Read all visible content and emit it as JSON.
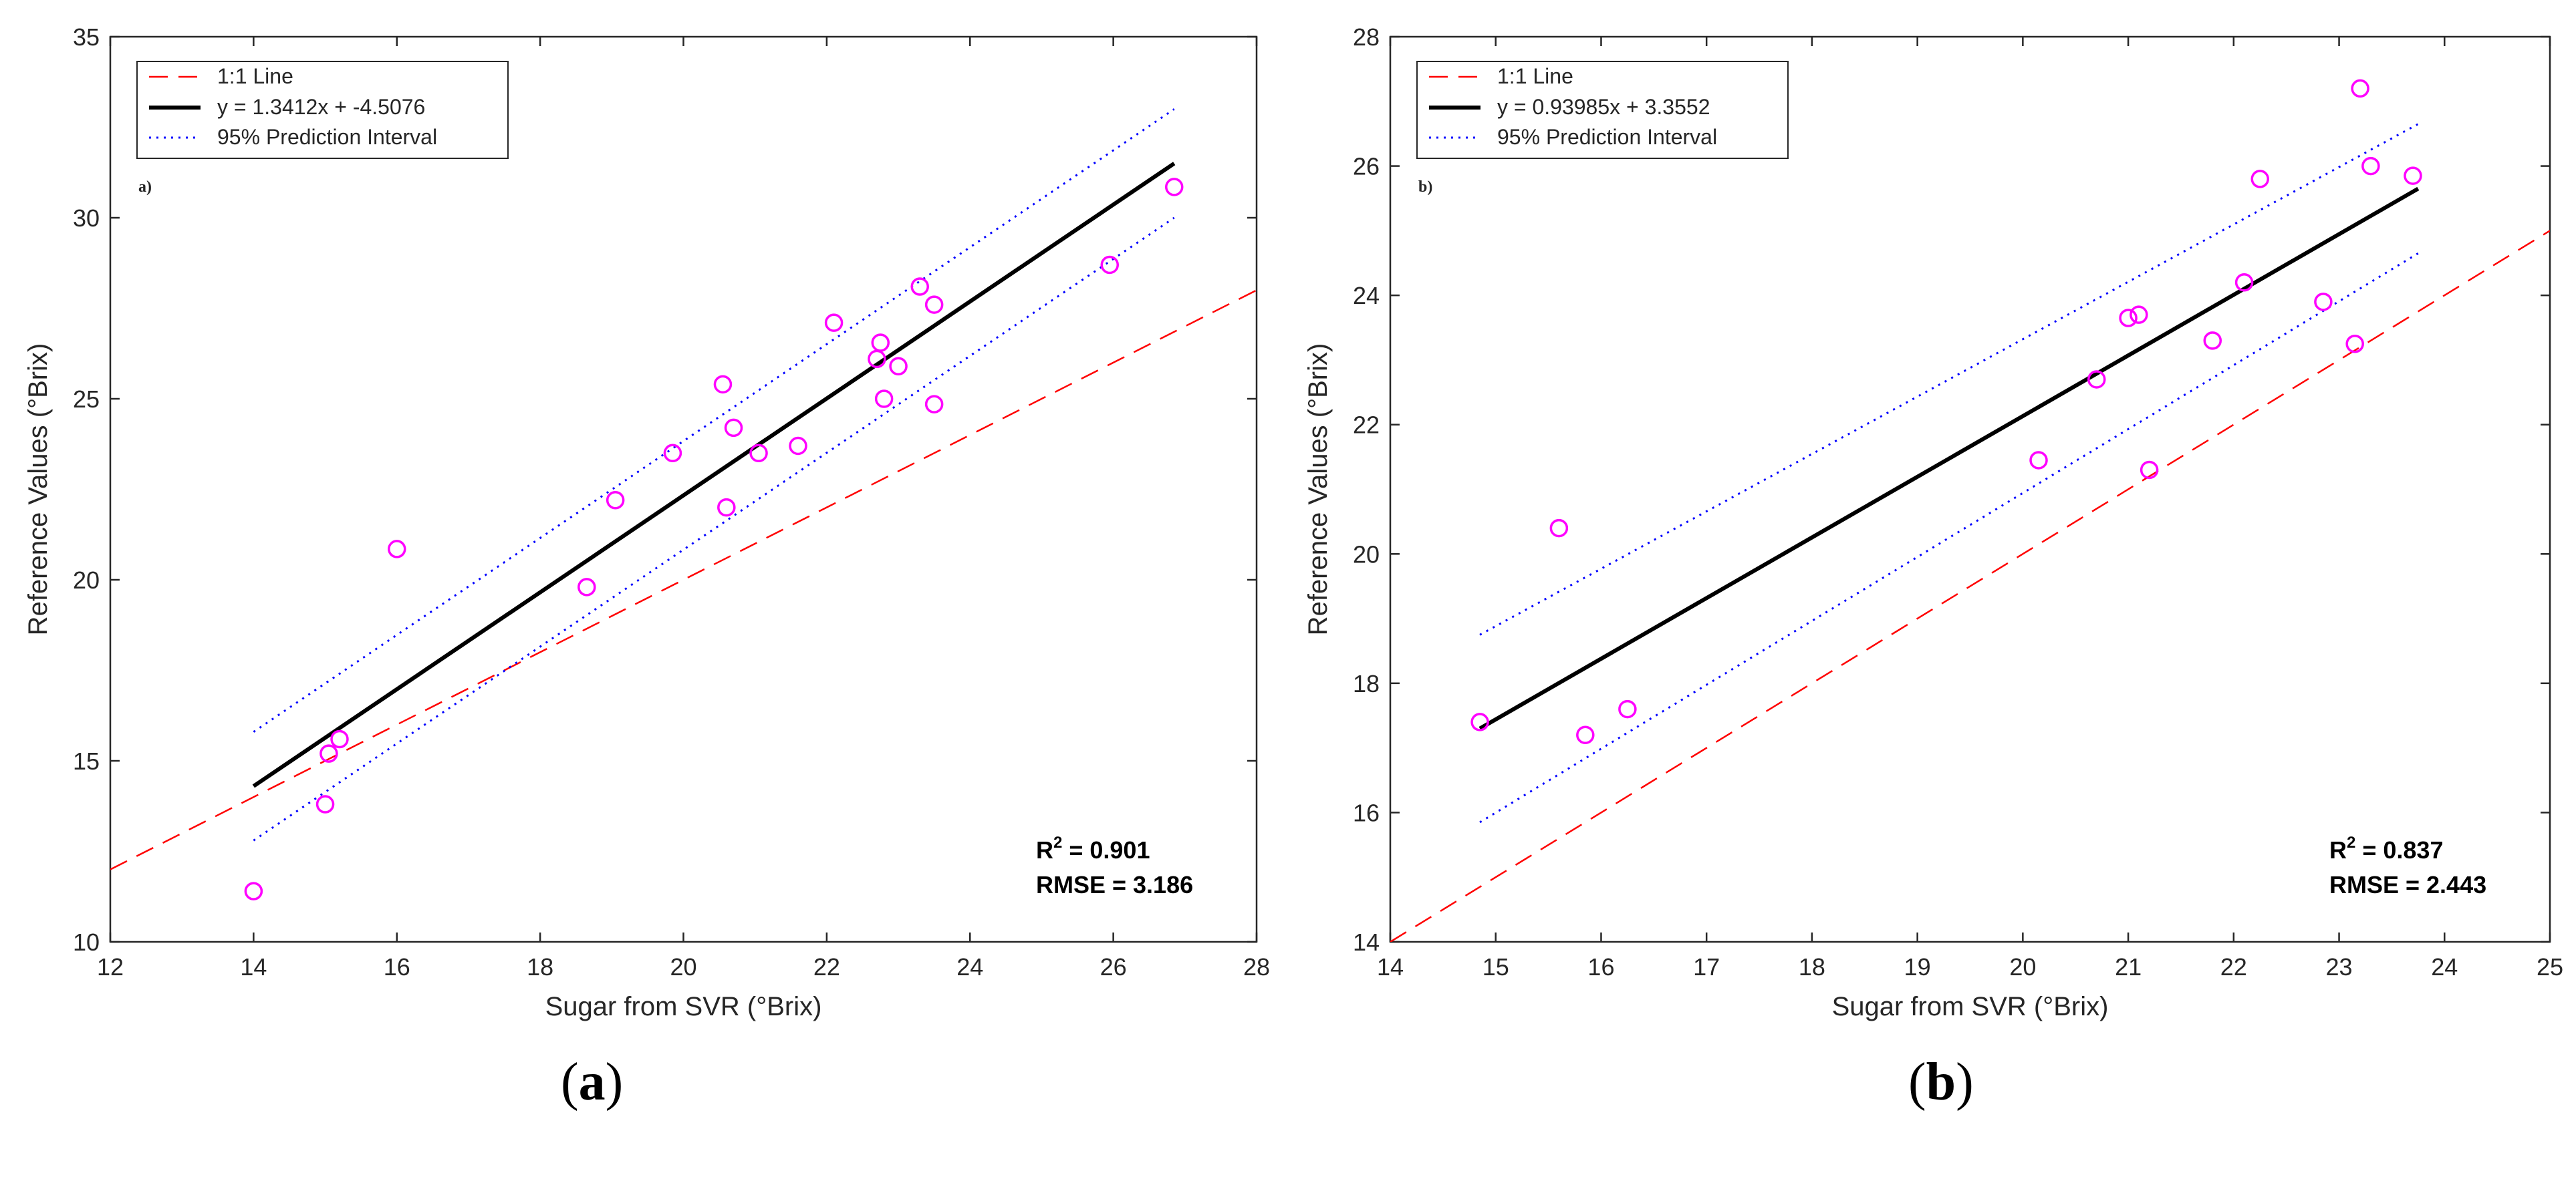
{
  "chart_data": [
    {
      "type": "scatter",
      "panel_tag": "a)",
      "caption_letter": "a",
      "xlabel": "Sugar from SVR (°Brix)",
      "ylabel": "Reference Values (°Brix)",
      "xlim": [
        12,
        28
      ],
      "ylim": [
        10,
        35
      ],
      "xticks": [
        12,
        14,
        16,
        18,
        20,
        22,
        24,
        26,
        28
      ],
      "yticks": [
        10,
        15,
        20,
        25,
        30,
        35
      ],
      "legend": [
        "1:1 Line",
        "y = 1.3412x + -4.5076",
        "95% Prediction Interval"
      ],
      "legend_position": "top-left",
      "stats": {
        "r2_label": "R",
        "r2_sup": "2",
        "r2_value": " = 0.901",
        "rmse": "RMSE  = 3.186"
      },
      "one_to_one": {
        "x": [
          12,
          28
        ],
        "y": [
          12,
          28
        ]
      },
      "fit_line": {
        "x": [
          14.0,
          26.85
        ],
        "y": [
          14.3,
          31.5
        ]
      },
      "pi_upper": {
        "x": [
          14.0,
          26.85
        ],
        "y": [
          15.8,
          33.0
        ]
      },
      "pi_lower": {
        "x": [
          14.0,
          26.85
        ],
        "y": [
          12.8,
          30.0
        ]
      },
      "points": [
        [
          14.0,
          11.4
        ],
        [
          15.0,
          13.8
        ],
        [
          15.05,
          15.2
        ],
        [
          15.2,
          15.6
        ],
        [
          16.0,
          20.85
        ],
        [
          18.65,
          19.8
        ],
        [
          19.05,
          22.2
        ],
        [
          19.85,
          23.5
        ],
        [
          20.55,
          25.4
        ],
        [
          20.6,
          22.0
        ],
        [
          20.7,
          24.2
        ],
        [
          21.05,
          23.5
        ],
        [
          21.6,
          23.7
        ],
        [
          22.1,
          27.1
        ],
        [
          22.7,
          26.1
        ],
        [
          22.75,
          26.55
        ],
        [
          22.8,
          25.0
        ],
        [
          23.0,
          25.9
        ],
        [
          23.3,
          28.1
        ],
        [
          23.5,
          24.85
        ],
        [
          23.5,
          27.6
        ],
        [
          25.95,
          28.7
        ],
        [
          26.85,
          30.85
        ]
      ]
    },
    {
      "type": "scatter",
      "panel_tag": "b)",
      "caption_letter": "b",
      "xlabel": "Sugar from SVR (°Brix)",
      "ylabel": "Reference Values (°Brix)",
      "xlim": [
        14,
        25
      ],
      "ylim": [
        14,
        28
      ],
      "xticks": [
        14,
        15,
        16,
        17,
        18,
        19,
        20,
        21,
        22,
        23,
        24,
        25
      ],
      "yticks": [
        14,
        16,
        18,
        20,
        22,
        24,
        26,
        28
      ],
      "legend": [
        "1:1 Line",
        "y = 0.93985x + 3.3552",
        "95% Prediction Interval"
      ],
      "legend_position": "top-left",
      "stats": {
        "r2_label": "R",
        "r2_sup": "2",
        "r2_value": " = 0.837",
        "rmse": "RMSE  = 2.443"
      },
      "one_to_one": {
        "x": [
          14,
          25
        ],
        "y": [
          14,
          25
        ]
      },
      "fit_line": {
        "x": [
          14.85,
          23.75
        ],
        "y": [
          17.3,
          25.65
        ]
      },
      "pi_upper": {
        "x": [
          14.85,
          23.75
        ],
        "y": [
          18.75,
          26.65
        ]
      },
      "pi_lower": {
        "x": [
          14.85,
          23.75
        ],
        "y": [
          15.85,
          24.65
        ]
      },
      "points": [
        [
          14.85,
          17.4
        ],
        [
          15.6,
          20.4
        ],
        [
          15.85,
          17.2
        ],
        [
          16.25,
          17.6
        ],
        [
          20.15,
          21.45
        ],
        [
          20.7,
          22.7
        ],
        [
          21.0,
          23.65
        ],
        [
          21.1,
          23.7
        ],
        [
          21.2,
          21.3
        ],
        [
          21.8,
          23.3
        ],
        [
          22.1,
          24.2
        ],
        [
          22.25,
          25.8
        ],
        [
          22.85,
          23.9
        ],
        [
          23.15,
          23.25
        ],
        [
          23.2,
          27.2
        ],
        [
          23.3,
          26.0
        ],
        [
          23.7,
          25.85
        ]
      ]
    }
  ]
}
